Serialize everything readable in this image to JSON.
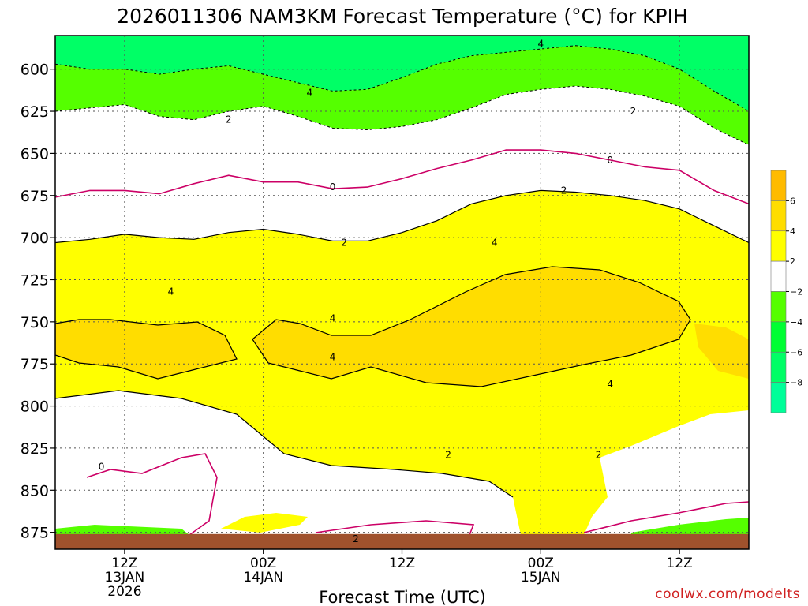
{
  "chart_data": {
    "type": "filled-contour",
    "title": "2026011306 NAM3KM Forecast Temperature (°C) for KPIH",
    "xlabel": "Forecast Time (UTC)",
    "ylabel": "",
    "y_axis": {
      "unit": "hPa",
      "ticks": [
        "600",
        "625",
        "650",
        "675",
        "700",
        "725",
        "750",
        "775",
        "800",
        "825",
        "850",
        "875"
      ],
      "range": [
        580,
        885
      ],
      "inverted": true
    },
    "x_axis": {
      "unit": "hours since 2026-01-13 06Z",
      "range": [
        0,
        60
      ],
      "ticks": [
        {
          "hour": 6,
          "label": "12Z",
          "sub1": "13JAN",
          "sub2": "2026"
        },
        {
          "hour": 18,
          "label": "00Z",
          "sub1": "14JAN",
          "sub2": ""
        },
        {
          "hour": 30,
          "label": "12Z",
          "sub1": "",
          "sub2": ""
        },
        {
          "hour": 42,
          "label": "00Z",
          "sub1": "15JAN",
          "sub2": ""
        },
        {
          "hour": 54,
          "label": "12Z",
          "sub1": "",
          "sub2": ""
        }
      ]
    },
    "grid": true,
    "colorbar": {
      "placement": "right",
      "levels": [
        -10,
        -8,
        -6,
        -4,
        -2,
        2,
        4,
        6,
        8
      ],
      "tick_labels": [
        "6",
        "4",
        "2",
        "−2",
        "−4",
        "−6",
        "−8"
      ],
      "colors": [
        "#00ff99",
        "#00ff66",
        "#00ff33",
        "#55ff00",
        "#ffffff",
        "#ffff00",
        "#ffdd00",
        "#ffbb00"
      ]
    },
    "series": [
      {
        "name": "0C isotherm (pressure hPa)",
        "x": [
          0,
          3,
          6,
          9,
          12,
          15,
          18,
          21,
          24,
          27,
          30,
          33,
          36,
          39,
          42,
          45,
          48,
          51,
          54,
          57,
          60
        ],
        "values": [
          676,
          672,
          672,
          674,
          668,
          663,
          667,
          667,
          671,
          670,
          665,
          659,
          654,
          648,
          648,
          650,
          654,
          658,
          660,
          672,
          680
        ]
      },
      {
        "name": "+2C contour (pressure hPa)",
        "x": [
          0,
          3,
          6,
          9,
          12,
          15,
          18,
          21,
          24,
          27,
          30,
          33,
          36,
          39,
          42,
          45,
          48,
          51,
          54,
          57,
          60
        ],
        "values": [
          703,
          701,
          698,
          700,
          701,
          697,
          695,
          698,
          702,
          702,
          697,
          690,
          680,
          675,
          672,
          673,
          675,
          678,
          683,
          693,
          703
        ]
      },
      {
        "name": "-2C contour (pressure hPa)",
        "x": [
          0,
          3,
          6,
          9,
          12,
          15,
          18,
          21,
          24,
          27,
          30,
          33,
          36,
          39,
          42,
          45,
          48,
          51,
          54,
          57,
          60
        ],
        "values": [
          625,
          623,
          621,
          628,
          630,
          625,
          622,
          628,
          635,
          636,
          634,
          630,
          623,
          615,
          612,
          610,
          612,
          616,
          622,
          635,
          645
        ]
      },
      {
        "name": "-4C contour (pressure hPa)",
        "x": [
          0,
          3,
          6,
          9,
          12,
          15,
          18,
          21,
          24,
          27,
          30,
          33,
          36,
          39,
          42,
          45,
          48,
          51,
          54,
          57,
          60
        ],
        "values": [
          597,
          600,
          600,
          603,
          600,
          598,
          603,
          608,
          613,
          612,
          605,
          597,
          592,
          590,
          588,
          586,
          588,
          592,
          600,
          613,
          625
        ]
      },
      {
        "name": "surface (ground) level",
        "x": [
          0,
          60
        ],
        "values": [
          876,
          876
        ]
      }
    ],
    "contour_labels": [
      {
        "text": "4",
        "x": 42,
        "y": 585
      },
      {
        "text": "4",
        "x": 22,
        "y": 614
      },
      {
        "text": "2",
        "x": 15,
        "y": 630
      },
      {
        "text": "2",
        "x": 50,
        "y": 625
      },
      {
        "text": "0",
        "x": 24,
        "y": 670
      },
      {
        "text": "0",
        "x": 48,
        "y": 654
      },
      {
        "text": "2",
        "x": 44,
        "y": 672
      },
      {
        "text": "2",
        "x": 25,
        "y": 703
      },
      {
        "text": "4",
        "x": 38,
        "y": 703
      },
      {
        "text": "4",
        "x": 10,
        "y": 732
      },
      {
        "text": "4",
        "x": 24,
        "y": 748
      },
      {
        "text": "4",
        "x": 24,
        "y": 771
      },
      {
        "text": "4",
        "x": 48,
        "y": 787
      },
      {
        "text": "2",
        "x": 34,
        "y": 829
      },
      {
        "text": "2",
        "x": 47,
        "y": 829
      },
      {
        "text": "0",
        "x": 4,
        "y": 836
      },
      {
        "text": "2",
        "x": 26,
        "y": 879
      }
    ],
    "credit": "coolwx.com/modelts"
  }
}
